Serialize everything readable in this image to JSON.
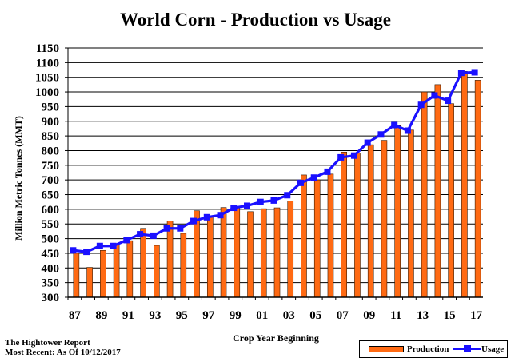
{
  "title": "World Corn - Production vs Usage",
  "footer": {
    "line1": "The Hightower Report",
    "line2": "Most Recent: As Of 10/12/2017"
  },
  "legend": {
    "production": "Production",
    "usage": "Usage"
  },
  "colors": {
    "production": "#ff6a13",
    "usage": "#1a10ff",
    "grid": "#000000"
  },
  "chart_data": {
    "type": "bar",
    "title": "World Corn - Production vs Usage",
    "xlabel": "Crop Year Beginning",
    "ylabel": "Million Metric Tonnes  (MMT)",
    "ylim": [
      300,
      1150
    ],
    "yticks": [
      300,
      350,
      400,
      450,
      500,
      550,
      600,
      650,
      700,
      750,
      800,
      850,
      900,
      950,
      1000,
      1050,
      1100,
      1150
    ],
    "categories": [
      "87",
      "88",
      "89",
      "90",
      "91",
      "92",
      "93",
      "94",
      "95",
      "96",
      "97",
      "98",
      "99",
      "00",
      "01",
      "02",
      "03",
      "04",
      "05",
      "06",
      "07",
      "08",
      "09",
      "10",
      "11",
      "12",
      "13",
      "14",
      "15",
      "16",
      "17"
    ],
    "xtick_labels": [
      "87",
      "89",
      "91",
      "93",
      "95",
      "97",
      "99",
      "01",
      "03",
      "05",
      "07",
      "09",
      "11",
      "13",
      "15",
      "17"
    ],
    "grid": true,
    "legend_position": "bottom-right",
    "series": [
      {
        "name": "Production",
        "type": "bar",
        "values": [
          450,
          402,
          460,
          480,
          493,
          535,
          477,
          560,
          518,
          595,
          575,
          606,
          607,
          592,
          602,
          605,
          628,
          717,
          700,
          720,
          795,
          792,
          820,
          835,
          885,
          870,
          1000,
          1025,
          960,
          1070,
          1040
        ]
      },
      {
        "name": "Usage",
        "type": "line",
        "values": [
          460,
          455,
          475,
          475,
          495,
          515,
          510,
          535,
          535,
          560,
          573,
          580,
          605,
          612,
          625,
          630,
          648,
          690,
          708,
          728,
          777,
          783,
          827,
          855,
          887,
          868,
          956,
          988,
          970,
          1065,
          1067
        ]
      }
    ]
  }
}
